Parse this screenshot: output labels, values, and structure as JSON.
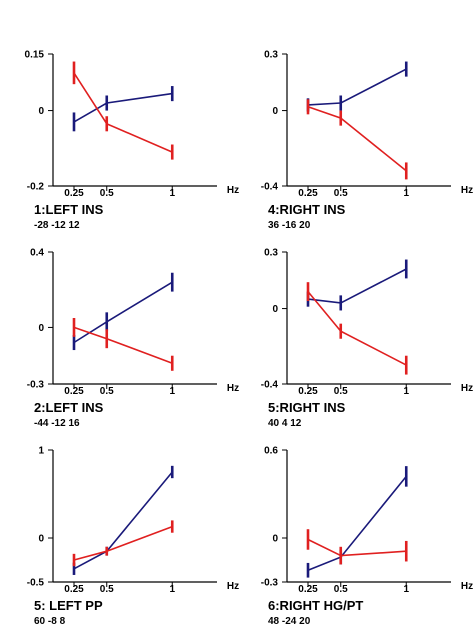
{
  "colors": {
    "blue": "#1a1a7a",
    "red": "#e02020",
    "axis": "#000000"
  },
  "chart_data": [
    {
      "type": "line",
      "title": "1:LEFT INS",
      "subtitle": "-28 -12 12",
      "x": [
        0.25,
        0.5,
        1
      ],
      "x_tick_labels": [
        "0.25",
        "0.5",
        "1"
      ],
      "x_unit": "Hz",
      "ylim": [
        -0.2,
        0.15
      ],
      "y_tick_values": [
        0.15,
        0,
        -0.2
      ],
      "y_tick_labels": [
        "0.15",
        "0",
        "-0.2"
      ],
      "series": [
        {
          "color": "blue",
          "values": [
            -0.03,
            0.02,
            0.045
          ],
          "err": [
            0.025,
            0.02,
            0.02
          ]
        },
        {
          "color": "red",
          "values": [
            0.1,
            -0.035,
            -0.11
          ],
          "err": [
            0.03,
            0.02,
            0.02
          ]
        }
      ]
    },
    {
      "type": "line",
      "title": "4:RIGHT INS",
      "subtitle": "36 -16 20",
      "x": [
        0.25,
        0.5,
        1
      ],
      "x_tick_labels": [
        "0.25",
        "0.5",
        "1"
      ],
      "x_unit": "Hz",
      "ylim": [
        -0.4,
        0.3
      ],
      "y_tick_values": [
        0.3,
        0,
        -0.4
      ],
      "y_tick_labels": [
        "0.3",
        "0",
        "-0.4"
      ],
      "series": [
        {
          "color": "blue",
          "values": [
            0.03,
            0.04,
            0.22
          ],
          "err": [
            0.035,
            0.04,
            0.04
          ]
        },
        {
          "color": "red",
          "values": [
            0.02,
            -0.04,
            -0.32
          ],
          "err": [
            0.04,
            0.04,
            0.045
          ]
        }
      ]
    },
    {
      "type": "line",
      "title": "2:LEFT INS",
      "subtitle": "-44 -12 16",
      "x": [
        0.25,
        0.5,
        1
      ],
      "x_tick_labels": [
        "0.25",
        "0.5",
        "1"
      ],
      "x_unit": "Hz",
      "ylim": [
        -0.3,
        0.4
      ],
      "y_tick_values": [
        0.4,
        0,
        -0.3
      ],
      "y_tick_labels": [
        "0.4",
        "0",
        "-0.3"
      ],
      "series": [
        {
          "color": "blue",
          "values": [
            -0.08,
            0.03,
            0.24
          ],
          "err": [
            0.04,
            0.05,
            0.05
          ]
        },
        {
          "color": "red",
          "values": [
            0.0,
            -0.06,
            -0.19
          ],
          "err": [
            0.05,
            0.05,
            0.04
          ]
        }
      ]
    },
    {
      "type": "line",
      "title": "5:RIGHT INS",
      "subtitle": "40 4 12",
      "x": [
        0.25,
        0.5,
        1
      ],
      "x_tick_labels": [
        "0.25",
        "0.5",
        "1"
      ],
      "x_unit": "Hz",
      "ylim": [
        -0.4,
        0.3
      ],
      "y_tick_values": [
        0.3,
        0,
        -0.4
      ],
      "y_tick_labels": [
        "0.3",
        "0",
        "-0.4"
      ],
      "series": [
        {
          "color": "blue",
          "values": [
            0.05,
            0.03,
            0.21
          ],
          "err": [
            0.04,
            0.04,
            0.05
          ]
        },
        {
          "color": "red",
          "values": [
            0.09,
            -0.12,
            -0.3
          ],
          "err": [
            0.05,
            0.04,
            0.05
          ]
        }
      ]
    },
    {
      "type": "line",
      "title": "5: LEFT PP",
      "subtitle": "60 -8 8",
      "x": [
        0.25,
        0.5,
        1
      ],
      "x_tick_labels": [
        "0.25",
        "0.5",
        "1"
      ],
      "x_unit": "Hz",
      "ylim": [
        -0.5,
        1
      ],
      "y_tick_values": [
        1,
        0,
        -0.5
      ],
      "y_tick_labels": [
        "1",
        "0",
        "-0.5"
      ],
      "series": [
        {
          "color": "blue",
          "values": [
            -0.35,
            -0.15,
            0.75
          ],
          "err": [
            0.07,
            0.05,
            0.07
          ]
        },
        {
          "color": "red",
          "values": [
            -0.25,
            -0.15,
            0.13
          ],
          "err": [
            0.07,
            0.05,
            0.07
          ]
        }
      ]
    },
    {
      "type": "line",
      "title": "6:RIGHT HG/PT",
      "subtitle": "48 -24 20",
      "x": [
        0.25,
        0.5,
        1
      ],
      "x_tick_labels": [
        "0.25",
        "0.5",
        "1"
      ],
      "x_unit": "Hz",
      "ylim": [
        -0.3,
        0.6
      ],
      "y_tick_values": [
        0.6,
        0,
        -0.3
      ],
      "y_tick_labels": [
        "0.6",
        "0",
        "-0.3"
      ],
      "series": [
        {
          "color": "blue",
          "values": [
            -0.22,
            -0.13,
            0.42
          ],
          "err": [
            0.05,
            0.05,
            0.07
          ]
        },
        {
          "color": "red",
          "values": [
            -0.01,
            -0.12,
            -0.09
          ],
          "err": [
            0.07,
            0.06,
            0.07
          ]
        }
      ]
    }
  ]
}
